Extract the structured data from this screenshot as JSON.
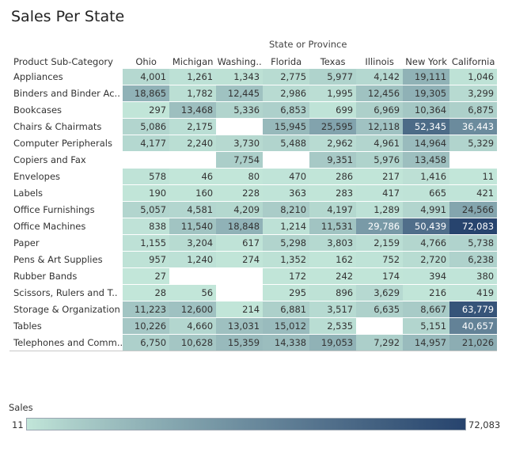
{
  "title": "Sales Per State",
  "column_group_label": "State or Province",
  "row_header_label": "Product Sub-Category",
  "legend": {
    "title": "Sales",
    "min_label": "11",
    "max_label": "72,083"
  },
  "colors": {
    "low": "#c2e6d9",
    "high": "#27446e"
  },
  "chart_data": {
    "type": "heatmap",
    "title": "Sales Per State",
    "x_label": "State or Province",
    "y_label": "Product Sub-Category",
    "columns": [
      "Ohio",
      "Michigan",
      "Washing..",
      "Florida",
      "Texas",
      "Illinois",
      "New York",
      "California"
    ],
    "rows": [
      "Appliances",
      "Binders and Binder Ac..",
      "Bookcases",
      "Chairs & Chairmats",
      "Computer Peripherals",
      "Copiers and Fax",
      "Envelopes",
      "Labels",
      "Office Furnishings",
      "Office Machines",
      "Paper",
      "Pens & Art Supplies",
      "Rubber Bands",
      "Scissors, Rulers and T..",
      "Storage & Organization",
      "Tables",
      "Telephones and Comm.."
    ],
    "values": [
      [
        4001,
        1261,
        1343,
        2775,
        5977,
        4142,
        19111,
        1046
      ],
      [
        18865,
        1782,
        12445,
        2986,
        1995,
        12456,
        19305,
        3299
      ],
      [
        297,
        13468,
        5336,
        6853,
        699,
        6969,
        10364,
        6875
      ],
      [
        5086,
        2175,
        null,
        15945,
        25595,
        12118,
        52345,
        36443
      ],
      [
        4177,
        2240,
        3730,
        5488,
        2962,
        4961,
        14964,
        5329
      ],
      [
        null,
        null,
        7754,
        null,
        9351,
        5976,
        13458,
        null
      ],
      [
        578,
        46,
        80,
        470,
        286,
        217,
        1416,
        11
      ],
      [
        190,
        160,
        228,
        363,
        283,
        417,
        665,
        421
      ],
      [
        5057,
        4581,
        4209,
        8210,
        4197,
        1289,
        4991,
        24566
      ],
      [
        838,
        11540,
        18848,
        1214,
        11531,
        29786,
        50439,
        72083
      ],
      [
        1155,
        3204,
        617,
        5298,
        3803,
        2159,
        4766,
        5738
      ],
      [
        957,
        1240,
        274,
        1352,
        162,
        752,
        2720,
        6238
      ],
      [
        27,
        null,
        null,
        172,
        242,
        174,
        394,
        380
      ],
      [
        28,
        56,
        null,
        295,
        896,
        3629,
        216,
        419
      ],
      [
        11223,
        12600,
        214,
        6881,
        3517,
        6635,
        8667,
        63779
      ],
      [
        10226,
        4660,
        13031,
        15012,
        2535,
        null,
        5151,
        40657
      ],
      [
        6750,
        10628,
        15359,
        14338,
        19053,
        7292,
        14957,
        21026
      ]
    ],
    "range": [
      11,
      72083
    ]
  }
}
